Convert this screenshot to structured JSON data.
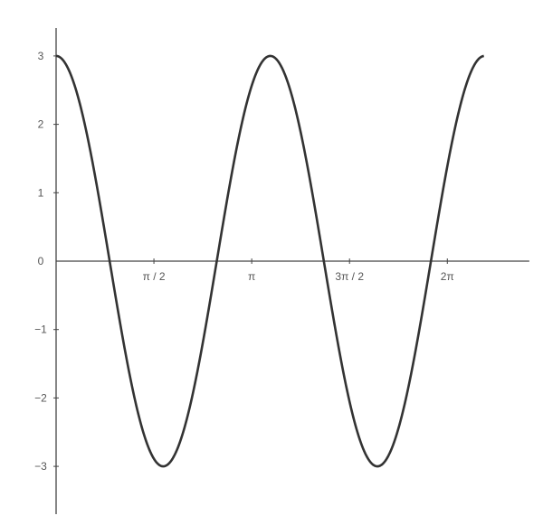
{
  "chart_data": {
    "type": "line",
    "title": "",
    "xlabel": "",
    "ylabel": "",
    "xlim": [
      0,
      7.6
    ],
    "ylim": [
      -3.5,
      3.5
    ],
    "grid": false,
    "x_ticks": [
      {
        "value": 1.5708,
        "label": "π / 2"
      },
      {
        "value": 3.1416,
        "label": "π"
      },
      {
        "value": 4.7124,
        "label": "3π / 2"
      },
      {
        "value": 6.2832,
        "label": "2π"
      }
    ],
    "y_ticks": [
      {
        "value": 3,
        "label": "3"
      },
      {
        "value": 2,
        "label": "2"
      },
      {
        "value": 1,
        "label": "1"
      },
      {
        "value": 0,
        "label": "0"
      },
      {
        "value": -1,
        "label": "−1"
      },
      {
        "value": -2,
        "label": "−2"
      },
      {
        "value": -3,
        "label": "−3"
      }
    ],
    "series": [
      {
        "function": "y = 3·cos(2π·x / 3.44)",
        "amplitude": 3,
        "period": 3.44,
        "domain": [
          0,
          6.87
        ],
        "key_points": [
          {
            "x": 0,
            "y": 3
          },
          {
            "x": 0.86,
            "y": 0
          },
          {
            "x": 1.72,
            "y": -3
          },
          {
            "x": 2.58,
            "y": 0
          },
          {
            "x": 3.44,
            "y": 3
          },
          {
            "x": 4.3,
            "y": 0
          },
          {
            "x": 5.16,
            "y": -3
          },
          {
            "x": 6.02,
            "y": 0
          },
          {
            "x": 6.87,
            "y": 3
          }
        ],
        "color": "#333333"
      }
    ],
    "axis_color": "#444444"
  }
}
